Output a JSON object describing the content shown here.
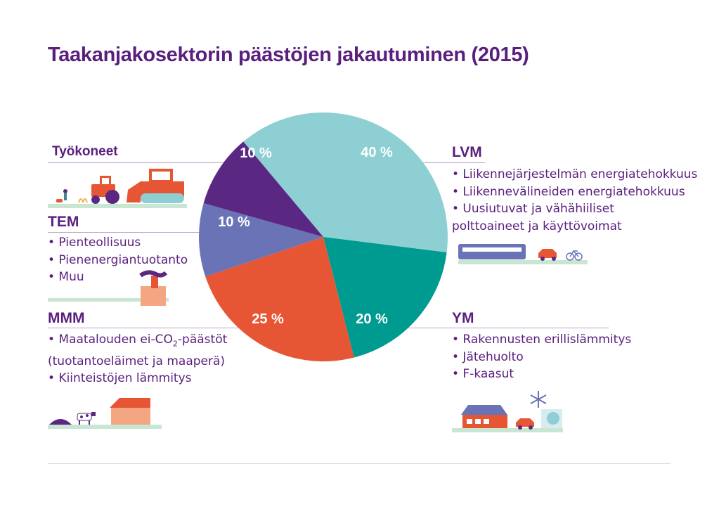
{
  "title": "Taakanjakosektorin päästöjen jakautuminen (2015)",
  "chart_data": {
    "type": "pie",
    "title": "Taakanjakosektorin päästöjen jakautuminen (2015)",
    "slices": [
      {
        "name": "LVM",
        "value": 40,
        "label": "40 %",
        "color": "#8ecfd3"
      },
      {
        "name": "YM",
        "value": 20,
        "label": "20 %",
        "color": "#009b90"
      },
      {
        "name": "MMM",
        "value": 25,
        "label": "25 %",
        "color": "#e65534"
      },
      {
        "name": "TEM",
        "value": 10,
        "label": "10 %",
        "color": "#6a73b6"
      },
      {
        "name": "Työkoneet",
        "value": 10,
        "label": "10 %",
        "color": "#5a2882"
      }
    ]
  },
  "sectors": {
    "tyokoneet": {
      "name": "Työkoneet"
    },
    "tem": {
      "name": "TEM",
      "items": [
        "• Pienteollisuus",
        "• Pienenergiantuotanto",
        "• Muu"
      ]
    },
    "mmm": {
      "name": "MMM",
      "items": [
        "• Maatalouden ei-CO",
        "2",
        "-päästöt",
        "(tuotantoeläimet ja maaperä)",
        "• Kiinteistöjen lämmitys"
      ]
    },
    "lvm": {
      "name": "LVM",
      "items": [
        "• Liikennejärjestelmän energiatehokkuus",
        "• Liikennevälineiden energiatehokkuus",
        "• Uusiutuvat ja vähähiiliset",
        "polttoaineet ja käyttövoimat"
      ]
    },
    "ym": {
      "name": "YM",
      "items": [
        "• Rakennusten erillislämmitys",
        "• Jätehuolto",
        "• F-kaasut"
      ]
    }
  },
  "icons": [
    "tractor-icon",
    "bulldozer-icon",
    "factory-icon",
    "cow-icon",
    "house-icon",
    "train-icon",
    "car-icon",
    "bicycle-icon",
    "snowflake-icon",
    "heat-pump-icon"
  ]
}
